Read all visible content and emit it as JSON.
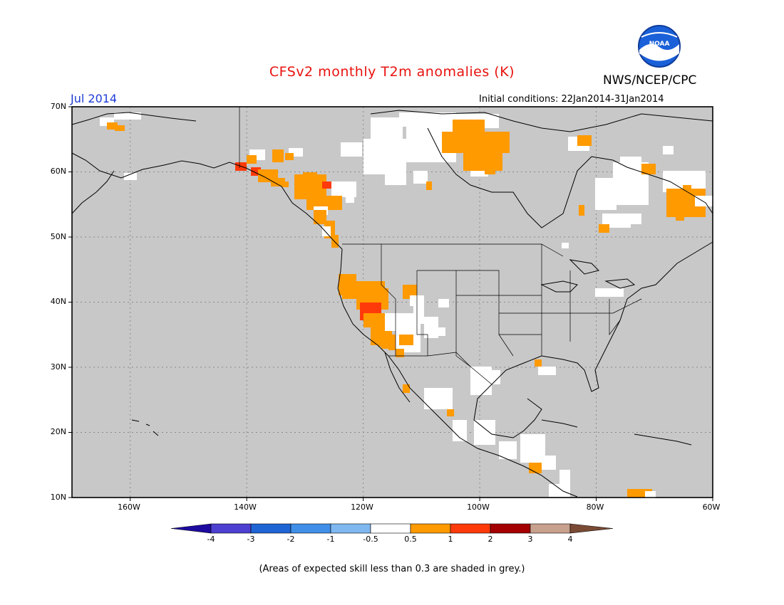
{
  "header": {
    "title": "CFSv2 monthly T2m anomalies (K)",
    "agency": "NWS/NCEP/CPC",
    "logo_text": "NOAA",
    "month": "Jul 2014",
    "initial_conditions": "Initial conditions: 22Jan2014-31Jan2014"
  },
  "map": {
    "region": "North America",
    "projection": "lat-lon",
    "lon_range": [
      -170,
      -60
    ],
    "lat_range": [
      10,
      70
    ],
    "background_color": "#c8c8c8",
    "lat_labels": [
      "70N",
      "60N",
      "50N",
      "40N",
      "30N",
      "20N",
      "10N"
    ],
    "lon_labels": [
      "160W",
      "140W",
      "120W",
      "100W",
      "80W",
      "60W"
    ],
    "gridlines": true
  },
  "colorbar": {
    "ticks": [
      "-4",
      "-3",
      "-2",
      "-1",
      "-0.5",
      "0.5",
      "1",
      "2",
      "3",
      "4"
    ],
    "colors": [
      "#1d0a9e",
      "#4d3fd0",
      "#1f64d4",
      "#3f8ee8",
      "#7fb8f0",
      "#ffffff",
      "#ff9a00",
      "#ff3a0a",
      "#a40000",
      "#c7a08e",
      "#7a4a34"
    ]
  },
  "footer": {
    "note": "(Areas of expected skill less than 0.3 are shaded in grey.)"
  }
}
